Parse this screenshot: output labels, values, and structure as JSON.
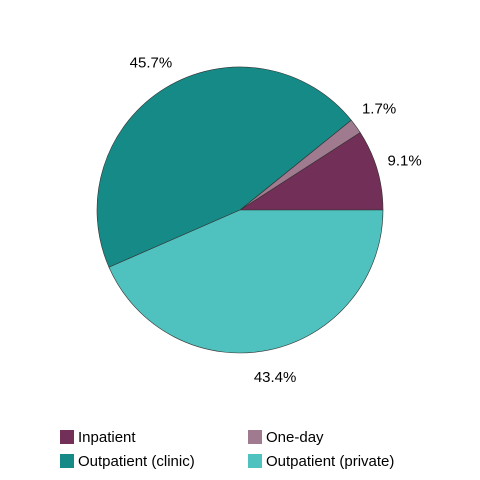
{
  "chart_data": {
    "type": "pie",
    "categories": [
      "Inpatient",
      "One-day",
      "Outpatient (clinic)",
      "Outpatient (private)"
    ],
    "values": [
      9.1,
      1.7,
      45.7,
      43.4
    ],
    "value_labels": [
      "9.1%",
      "1.7%",
      "45.7%",
      "43.4%"
    ],
    "colors": [
      "#722f57",
      "#a07a8f",
      "#168a87",
      "#4fc1be"
    ]
  }
}
